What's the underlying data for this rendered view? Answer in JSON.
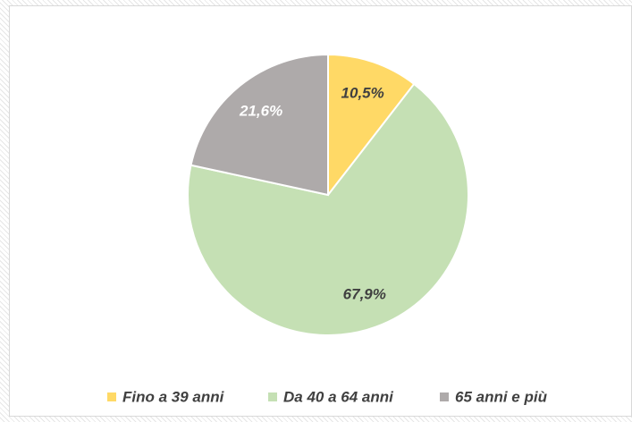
{
  "chart_data": {
    "type": "pie",
    "categories": [
      "Fino a 39 anni",
      "Da 40 a 64 anni",
      "65 anni e più"
    ],
    "values": [
      10.5,
      67.9,
      21.6
    ],
    "value_labels": [
      "10,5%",
      "67,9%",
      "21,6%"
    ],
    "colors": [
      "#ffd966",
      "#c5e0b4",
      "#aeaaaa"
    ],
    "value_label_colors": [
      "#404040",
      "#404040",
      "#ffffff"
    ],
    "legend": "bottom"
  }
}
